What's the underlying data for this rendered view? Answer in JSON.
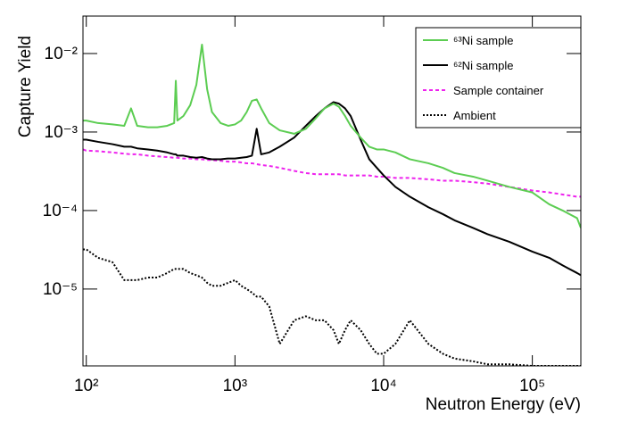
{
  "chart_data": {
    "type": "line",
    "xlabel": "Neutron Energy (eV)",
    "ylabel": "Capture Yield",
    "xscale": "log",
    "yscale": "log",
    "xlim": [
      95,
      212000
    ],
    "ylim": [
      1.05e-06,
      0.03
    ],
    "xticks": [
      {
        "value": 100,
        "label": "10²"
      },
      {
        "value": 1000,
        "label": "10³"
      },
      {
        "value": 10000,
        "label": "10⁴"
      },
      {
        "value": 100000,
        "label": "10⁵"
      }
    ],
    "yticks": [
      {
        "value": 1e-05,
        "label": "10⁻⁵"
      },
      {
        "value": 0.0001,
        "label": "10⁻⁴"
      },
      {
        "value": 0.001,
        "label": "10⁻³"
      },
      {
        "value": 0.01,
        "label": "10⁻²"
      }
    ],
    "grid": false,
    "legend": "upper right",
    "x": [
      95,
      100,
      120,
      150,
      180,
      200,
      220,
      260,
      300,
      350,
      390,
      400,
      410,
      450,
      500,
      550,
      600,
      650,
      700,
      800,
      900,
      1000,
      1100,
      1200,
      1300,
      1400,
      1500,
      1700,
      2000,
      2500,
      3000,
      3500,
      4000,
      4600,
      5000,
      5500,
      6000,
      7000,
      8000,
      9000,
      10000,
      12000,
      15000,
      20000,
      25000,
      30000,
      40000,
      50000,
      70000,
      100000,
      130000,
      160000,
      200000,
      212000
    ],
    "series": [
      {
        "name": "⁶³Ni sample",
        "color": "#5ccd52",
        "line_style": "solid",
        "values": [
          0.0014,
          0.0014,
          0.0013,
          0.00125,
          0.0012,
          0.002,
          0.0012,
          0.00115,
          0.00115,
          0.0012,
          0.0013,
          0.0045,
          0.0014,
          0.0016,
          0.0022,
          0.004,
          0.013,
          0.0035,
          0.0018,
          0.0013,
          0.0012,
          0.00125,
          0.0014,
          0.0018,
          0.0025,
          0.0026,
          0.002,
          0.0013,
          0.00105,
          0.00095,
          0.0011,
          0.0015,
          0.002,
          0.0023,
          0.0021,
          0.0016,
          0.0012,
          0.00085,
          0.00065,
          0.0006,
          0.0006,
          0.00055,
          0.00045,
          0.0004,
          0.00035,
          0.0003,
          0.00027,
          0.00024,
          0.0002,
          0.00017,
          0.00012,
          0.0001,
          8e-05,
          6e-05
        ]
      },
      {
        "name": "⁶²Ni sample",
        "color": "#000000",
        "line_style": "solid",
        "values": [
          0.0008,
          0.0008,
          0.00075,
          0.0007,
          0.00065,
          0.00065,
          0.00062,
          0.0006,
          0.00058,
          0.00055,
          0.00052,
          0.00052,
          0.0005,
          0.0005,
          0.00048,
          0.00047,
          0.00048,
          0.00046,
          0.00045,
          0.00045,
          0.00046,
          0.00046,
          0.00047,
          0.00048,
          0.0005,
          0.0011,
          0.00052,
          0.00055,
          0.00065,
          0.00085,
          0.0012,
          0.0016,
          0.002,
          0.0024,
          0.0023,
          0.002,
          0.0016,
          0.0008,
          0.00045,
          0.00035,
          0.00028,
          0.0002,
          0.00015,
          0.00011,
          9e-05,
          7.5e-05,
          6e-05,
          5e-05,
          4e-05,
          3e-05,
          2.5e-05,
          2e-05,
          1.6e-05,
          1.5e-05
        ]
      },
      {
        "name": "Sample container",
        "color": "#ee22ee",
        "line_style": "dashed",
        "values": [
          0.0006,
          0.00058,
          0.00057,
          0.00055,
          0.00053,
          0.00052,
          0.00052,
          0.0005,
          0.00049,
          0.00048,
          0.00047,
          0.00047,
          0.00047,
          0.00046,
          0.00046,
          0.00045,
          0.00045,
          0.00044,
          0.00044,
          0.00043,
          0.00042,
          0.00042,
          0.00041,
          0.0004,
          0.0004,
          0.00039,
          0.00038,
          0.00037,
          0.00035,
          0.00032,
          0.0003,
          0.00029,
          0.00029,
          0.00029,
          0.00029,
          0.00028,
          0.00028,
          0.00028,
          0.00028,
          0.00027,
          0.00027,
          0.00026,
          0.00026,
          0.00025,
          0.00024,
          0.00024,
          0.00023,
          0.00022,
          0.0002,
          0.00018,
          0.00017,
          0.00016,
          0.00015,
          0.00015
        ]
      },
      {
        "name": "Ambient",
        "color": "#000000",
        "line_style": "dotted",
        "values": [
          3.2e-05,
          3.2e-05,
          2.5e-05,
          2.2e-05,
          1.3e-05,
          1.3e-05,
          1.3e-05,
          1.4e-05,
          1.4e-05,
          1.6e-05,
          1.8e-05,
          1.8e-05,
          1.8e-05,
          1.8e-05,
          1.6e-05,
          1.5e-05,
          1.4e-05,
          1.2e-05,
          1.1e-05,
          1.1e-05,
          1.2e-05,
          1.3e-05,
          1.1e-05,
          1e-05,
          9e-06,
          8e-06,
          8e-06,
          6e-06,
          2e-06,
          4e-06,
          4.5e-06,
          4e-06,
          4e-06,
          3e-06,
          2e-06,
          3e-06,
          4e-06,
          3e-06,
          2e-06,
          1.5e-06,
          1.5e-06,
          2e-06,
          4e-06,
          2e-06,
          1.5e-06,
          1.3e-06,
          1.2e-06,
          1.1e-06,
          1.1e-06,
          1.05e-06,
          1.05e-06,
          1.05e-06,
          1.05e-06,
          1.05e-06
        ]
      }
    ]
  }
}
